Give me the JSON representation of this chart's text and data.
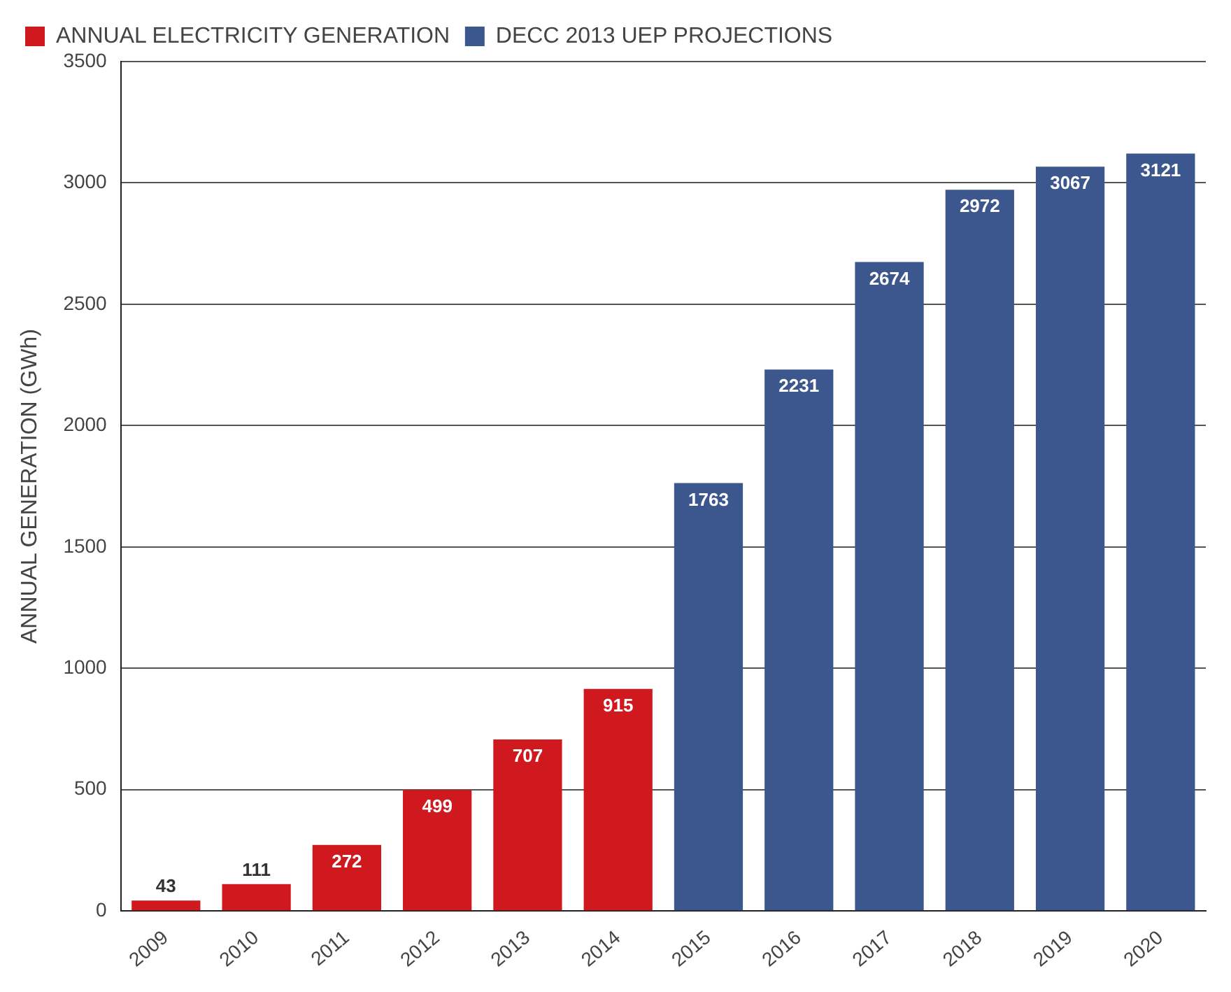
{
  "chart_data": {
    "type": "bar",
    "ylabel": "ANNUAL GENERATION (GWh)",
    "categories": [
      "2009",
      "2010",
      "2011",
      "2012",
      "2013",
      "2014",
      "2015",
      "2016",
      "2017",
      "2018",
      "2019",
      "2020"
    ],
    "series": [
      {
        "name": "ANNUAL ELECTRICITY GENERATION",
        "color": "#d0191f",
        "values": [
          43,
          111,
          272,
          499,
          707,
          915,
          null,
          null,
          null,
          null,
          null,
          null
        ]
      },
      {
        "name": "DECC 2013 UEP PROJECTIONS",
        "color": "#3c568e",
        "values": [
          null,
          null,
          null,
          null,
          null,
          null,
          1763,
          2231,
          2674,
          2972,
          3067,
          3121
        ]
      }
    ],
    "ylim": [
      0,
      3500
    ],
    "yticks": [
      0,
      500,
      1000,
      1500,
      2000,
      2500,
      3000,
      3500
    ],
    "grid": "y",
    "legend": "top left",
    "data_labels": true
  }
}
